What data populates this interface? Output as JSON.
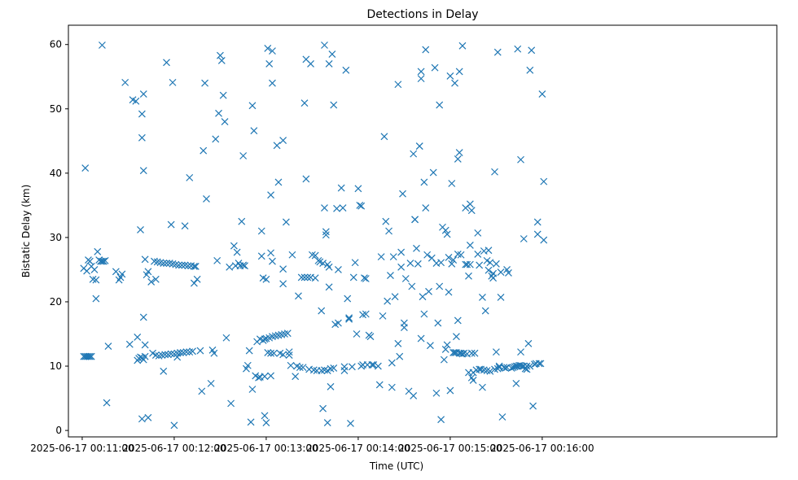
{
  "chart_data": {
    "type": "scatter",
    "title": "Detections in Delay",
    "xlabel": "Time (UTC)",
    "ylabel": "Bistatic Delay (km)",
    "marker": "x",
    "color": "#1f77b4",
    "x_unit": "seconds past 2025-06-17 00:11:00",
    "xlim": [
      -9,
      453
    ],
    "ylim": [
      -1,
      63
    ],
    "x_ticks": [
      {
        "value": 0,
        "label": "2025-06-17 00:11:00"
      },
      {
        "value": 60,
        "label": "2025-06-17 00:12:00"
      },
      {
        "value": 120,
        "label": "2025-06-17 00:13:00"
      },
      {
        "value": 180,
        "label": "2025-06-17 00:14:00"
      },
      {
        "value": 240,
        "label": "2025-06-17 00:15:00"
      },
      {
        "value": 300,
        "label": "2025-06-17 00:16:00"
      }
    ],
    "y_ticks": [
      0,
      10,
      20,
      30,
      40,
      50,
      60
    ],
    "points": [
      [
        1,
        11.5
      ],
      [
        2,
        11.5
      ],
      [
        3,
        11.5
      ],
      [
        4,
        11.5
      ],
      [
        5,
        11.5
      ],
      [
        6,
        11.5
      ],
      [
        1,
        25.2
      ],
      [
        3,
        24.8
      ],
      [
        4,
        26.5
      ],
      [
        5,
        26.3
      ],
      [
        6,
        25.5
      ],
      [
        7,
        23.5
      ],
      [
        8,
        25.0
      ],
      [
        9,
        23.4
      ],
      [
        10,
        27.8
      ],
      [
        11,
        26.5
      ],
      [
        12,
        26.3
      ],
      [
        13,
        26.3
      ],
      [
        14,
        26.3
      ],
      [
        15,
        26.4
      ],
      [
        2,
        40.8
      ],
      [
        9,
        20.5
      ],
      [
        13,
        59.9
      ],
      [
        16,
        4.3
      ],
      [
        17,
        13.1
      ],
      [
        22,
        24.7
      ],
      [
        24,
        23.4
      ],
      [
        25,
        23.8
      ],
      [
        26,
        24.3
      ],
      [
        28,
        54.1
      ],
      [
        31,
        13.4
      ],
      [
        33,
        51.4
      ],
      [
        35,
        51.2
      ],
      [
        36,
        14.5
      ],
      [
        36,
        10.9
      ],
      [
        37,
        11.2
      ],
      [
        38,
        11.4
      ],
      [
        39,
        11.3
      ],
      [
        40,
        11.0
      ],
      [
        41,
        11.5
      ],
      [
        38,
        31.2
      ],
      [
        39,
        1.8
      ],
      [
        39,
        49.2
      ],
      [
        39,
        45.5
      ],
      [
        40,
        17.6
      ],
      [
        40,
        52.3
      ],
      [
        40,
        40.4
      ],
      [
        41,
        26.6
      ],
      [
        41,
        13.3
      ],
      [
        42,
        24.2
      ],
      [
        43,
        2.0
      ],
      [
        43,
        24.7
      ],
      [
        46,
        12.0
      ],
      [
        47,
        26.3
      ],
      [
        48,
        11.7
      ],
      [
        49,
        26.2
      ],
      [
        50,
        11.6
      ],
      [
        51,
        26.1
      ],
      [
        52,
        11.7
      ],
      [
        53,
        26.0
      ],
      [
        54,
        11.8
      ],
      [
        55,
        26.0
      ],
      [
        56,
        11.8
      ],
      [
        57,
        26.0
      ],
      [
        58,
        11.9
      ],
      [
        59,
        25.9
      ],
      [
        60,
        11.9
      ],
      [
        61,
        25.8
      ],
      [
        62,
        12.0
      ],
      [
        63,
        25.7
      ],
      [
        64,
        12.1
      ],
      [
        65,
        25.7
      ],
      [
        66,
        12.1
      ],
      [
        67,
        25.7
      ],
      [
        68,
        12.2
      ],
      [
        69,
        25.6
      ],
      [
        70,
        12.2
      ],
      [
        71,
        25.6
      ],
      [
        72,
        12.3
      ],
      [
        73,
        25.5
      ],
      [
        74,
        25.5
      ],
      [
        45,
        23.1
      ],
      [
        48,
        23.5
      ],
      [
        53,
        9.2
      ],
      [
        55,
        57.2
      ],
      [
        58,
        32.0
      ],
      [
        59,
        54.1
      ],
      [
        60,
        0.8
      ],
      [
        62,
        11.4
      ],
      [
        67,
        31.8
      ],
      [
        70,
        39.3
      ],
      [
        73,
        22.9
      ],
      [
        75,
        23.5
      ],
      [
        77,
        12.4
      ],
      [
        78,
        6.1
      ],
      [
        79,
        43.5
      ],
      [
        80,
        54.0
      ],
      [
        81,
        36.0
      ],
      [
        84,
        7.3
      ],
      [
        85,
        12.5
      ],
      [
        86,
        12.0
      ],
      [
        87,
        45.3
      ],
      [
        88,
        26.4
      ],
      [
        89,
        49.3
      ],
      [
        90,
        58.3
      ],
      [
        91,
        57.5
      ],
      [
        92,
        52.1
      ],
      [
        93,
        48.0
      ],
      [
        94,
        14.4
      ],
      [
        96,
        25.4
      ],
      [
        97,
        4.2
      ],
      [
        99,
        28.7
      ],
      [
        100,
        25.6
      ],
      [
        101,
        27.7
      ],
      [
        102,
        26.0
      ],
      [
        103,
        25.6
      ],
      [
        104,
        32.5
      ],
      [
        105,
        25.7
      ],
      [
        105,
        42.7
      ],
      [
        106,
        25.6
      ],
      [
        107,
        9.6
      ],
      [
        108,
        10.1
      ],
      [
        109,
        12.4
      ],
      [
        110,
        1.3
      ],
      [
        111,
        6.4
      ],
      [
        111,
        50.5
      ],
      [
        112,
        46.6
      ],
      [
        113,
        8.5
      ],
      [
        114,
        13.8
      ],
      [
        115,
        8.2
      ],
      [
        116,
        8.3
      ],
      [
        116,
        14.2
      ],
      [
        117,
        27.1
      ],
      [
        117,
        31.0
      ],
      [
        118,
        23.7
      ],
      [
        118,
        14.0
      ],
      [
        119,
        14.2
      ],
      [
        120,
        23.5
      ],
      [
        120,
        14.3
      ],
      [
        121,
        59.4
      ],
      [
        121,
        12.1
      ],
      [
        122,
        57.0
      ],
      [
        122,
        14.4
      ],
      [
        123,
        36.6
      ],
      [
        123,
        27.6
      ],
      [
        123,
        12.0
      ],
      [
        124,
        14.6
      ],
      [
        124,
        26.3
      ],
      [
        124,
        54.0
      ],
      [
        124,
        59.0
      ],
      [
        125,
        12.0
      ],
      [
        126,
        14.7
      ],
      [
        127,
        44.3
      ],
      [
        128,
        38.6
      ],
      [
        128,
        14.8
      ],
      [
        129,
        12.0
      ],
      [
        130,
        14.9
      ],
      [
        131,
        45.1
      ],
      [
        131,
        22.8
      ],
      [
        131,
        25.1
      ],
      [
        131,
        11.8
      ],
      [
        132,
        15.0
      ],
      [
        133,
        32.4
      ],
      [
        134,
        15.1
      ],
      [
        135,
        11.7
      ],
      [
        135,
        12.2
      ],
      [
        136,
        10.1
      ],
      [
        137,
        27.3
      ],
      [
        119,
        2.3
      ],
      [
        119,
        8.4
      ],
      [
        120,
        1.2
      ],
      [
        123,
        8.5
      ],
      [
        139,
        8.4
      ],
      [
        140,
        10.0
      ],
      [
        141,
        20.9
      ],
      [
        142,
        9.8
      ],
      [
        143,
        23.8
      ],
      [
        144,
        9.8
      ],
      [
        145,
        50.9
      ],
      [
        145,
        23.8
      ],
      [
        146,
        57.7
      ],
      [
        146,
        39.1
      ],
      [
        147,
        23.8
      ],
      [
        148,
        9.5
      ],
      [
        149,
        57.0
      ],
      [
        149,
        23.8
      ],
      [
        150,
        27.3
      ],
      [
        151,
        9.4
      ],
      [
        152,
        27.2
      ],
      [
        152,
        23.7
      ],
      [
        153,
        9.3
      ],
      [
        154,
        26.4
      ],
      [
        155,
        26.2
      ],
      [
        156,
        9.3
      ],
      [
        156,
        18.6
      ],
      [
        157,
        26.0
      ],
      [
        157,
        3.4
      ],
      [
        158,
        9.4
      ],
      [
        158,
        59.9
      ],
      [
        158,
        34.6
      ],
      [
        159,
        30.4
      ],
      [
        159,
        30.9
      ],
      [
        160,
        9.3
      ],
      [
        160,
        25.8
      ],
      [
        160,
        1.2
      ],
      [
        161,
        22.3
      ],
      [
        161,
        25.4
      ],
      [
        161,
        57.0
      ],
      [
        162,
        6.8
      ],
      [
        162,
        9.6
      ],
      [
        163,
        58.5
      ],
      [
        164,
        9.7
      ],
      [
        164,
        50.6
      ],
      [
        165,
        16.5
      ],
      [
        166,
        34.5
      ],
      [
        167,
        16.7
      ],
      [
        167,
        25.0
      ],
      [
        169,
        37.7
      ],
      [
        170,
        34.6
      ],
      [
        171,
        9.3
      ],
      [
        171,
        9.9
      ],
      [
        172,
        56.0
      ],
      [
        173,
        20.5
      ],
      [
        174,
        17.5
      ],
      [
        174,
        17.3
      ],
      [
        175,
        1.1
      ],
      [
        176,
        9.9
      ],
      [
        177,
        23.8
      ],
      [
        178,
        26.1
      ],
      [
        179,
        15.0
      ],
      [
        180,
        37.6
      ],
      [
        181,
        35.0
      ],
      [
        182,
        10.0
      ],
      [
        182,
        34.9
      ],
      [
        183,
        10.2
      ],
      [
        183,
        18.0
      ],
      [
        184,
        23.7
      ],
      [
        185,
        23.6
      ],
      [
        185,
        18.1
      ],
      [
        186,
        10.2
      ],
      [
        187,
        14.8
      ],
      [
        188,
        14.6
      ],
      [
        189,
        10.2
      ],
      [
        190,
        10.2
      ],
      [
        193,
        10.0
      ],
      [
        194,
        7.1
      ],
      [
        195,
        27.0
      ],
      [
        196,
        17.8
      ],
      [
        197,
        45.7
      ],
      [
        198,
        32.5
      ],
      [
        199,
        20.1
      ],
      [
        200,
        31.0
      ],
      [
        201,
        24.1
      ],
      [
        202,
        10.5
      ],
      [
        202,
        6.7
      ],
      [
        203,
        27.0
      ],
      [
        204,
        20.8
      ],
      [
        206,
        53.8
      ],
      [
        206,
        13.5
      ],
      [
        207,
        11.5
      ],
      [
        208,
        25.4
      ],
      [
        208,
        27.7
      ],
      [
        209,
        36.8
      ],
      [
        210,
        16.0
      ],
      [
        210,
        16.7
      ],
      [
        211,
        23.6
      ],
      [
        213,
        6.1
      ],
      [
        214,
        26.0
      ],
      [
        215,
        22.4
      ],
      [
        216,
        5.4
      ],
      [
        216,
        43.0
      ],
      [
        217,
        32.8
      ],
      [
        217,
        32.8
      ],
      [
        218,
        28.3
      ],
      [
        219,
        25.9
      ],
      [
        220,
        44.2
      ],
      [
        220,
        44.2
      ],
      [
        221,
        14.3
      ],
      [
        221,
        55.8
      ],
      [
        221,
        54.7
      ],
      [
        222,
        20.8
      ],
      [
        223,
        38.6
      ],
      [
        223,
        18.1
      ],
      [
        224,
        34.6
      ],
      [
        224,
        59.2
      ],
      [
        225,
        27.3
      ],
      [
        226,
        21.6
      ],
      [
        227,
        13.2
      ],
      [
        228,
        26.8
      ],
      [
        229,
        40.1
      ],
      [
        230,
        56.4
      ],
      [
        231,
        5.8
      ],
      [
        231,
        26.0
      ],
      [
        232,
        16.7
      ],
      [
        233,
        22.4
      ],
      [
        233,
        50.6
      ],
      [
        234,
        26.1
      ],
      [
        234,
        1.7
      ],
      [
        235,
        31.6
      ],
      [
        236,
        11.0
      ],
      [
        237,
        31.1
      ],
      [
        237,
        12.6
      ],
      [
        238,
        13.3
      ],
      [
        238,
        30.5
      ],
      [
        239,
        21.5
      ],
      [
        239,
        26.9
      ],
      [
        240,
        6.2
      ],
      [
        240,
        55.1
      ],
      [
        241,
        38.4
      ],
      [
        241,
        25.9
      ],
      [
        242,
        12.1
      ],
      [
        242,
        26.5
      ],
      [
        243,
        12.1
      ],
      [
        243,
        54.0
      ],
      [
        244,
        14.6
      ],
      [
        244,
        12.1
      ],
      [
        245,
        27.4
      ],
      [
        245,
        17.1
      ],
      [
        245,
        42.2
      ],
      [
        246,
        43.2
      ],
      [
        246,
        55.8
      ],
      [
        246,
        12.0
      ],
      [
        247,
        27.3
      ],
      [
        247,
        12.0
      ],
      [
        248,
        59.8
      ],
      [
        248,
        11.9
      ],
      [
        249,
        12.0
      ],
      [
        250,
        34.6
      ],
      [
        250,
        25.8
      ],
      [
        251,
        11.9
      ],
      [
        251,
        25.8
      ],
      [
        252,
        9.0
      ],
      [
        252,
        24.0
      ],
      [
        253,
        35.2
      ],
      [
        253,
        25.8
      ],
      [
        253,
        28.8
      ],
      [
        254,
        34.2
      ],
      [
        254,
        12.0
      ],
      [
        254,
        8.2
      ],
      [
        255,
        7.8
      ],
      [
        255,
        9.0
      ],
      [
        256,
        12.0
      ],
      [
        257,
        9.4
      ],
      [
        258,
        30.7
      ],
      [
        258,
        27.4
      ],
      [
        259,
        9.5
      ],
      [
        259,
        25.7
      ],
      [
        260,
        9.5
      ],
      [
        261,
        6.7
      ],
      [
        261,
        20.7
      ],
      [
        262,
        9.4
      ],
      [
        262,
        27.9
      ],
      [
        263,
        18.6
      ],
      [
        264,
        9.3
      ],
      [
        264,
        26.4
      ],
      [
        265,
        28.0
      ],
      [
        265,
        24.9
      ],
      [
        266,
        9.2
      ],
      [
        266,
        26.1
      ],
      [
        267,
        24.0
      ],
      [
        268,
        23.7
      ],
      [
        268,
        24.4
      ],
      [
        269,
        9.5
      ],
      [
        269,
        40.2
      ],
      [
        270,
        25.9
      ],
      [
        270,
        12.2
      ],
      [
        271,
        9.6
      ],
      [
        271,
        58.8
      ],
      [
        272,
        9.8
      ],
      [
        272,
        10.0
      ],
      [
        273,
        24.6
      ],
      [
        273,
        20.7
      ],
      [
        274,
        2.1
      ],
      [
        275,
        9.8
      ],
      [
        276,
        9.7
      ],
      [
        277,
        9.8
      ],
      [
        277,
        25.0
      ],
      [
        278,
        24.5
      ],
      [
        280,
        9.7
      ],
      [
        281,
        9.8
      ],
      [
        282,
        9.9
      ],
      [
        283,
        10.0
      ],
      [
        283,
        7.3
      ],
      [
        284,
        59.3
      ],
      [
        284,
        10.0
      ],
      [
        285,
        10.1
      ],
      [
        286,
        10.1
      ],
      [
        286,
        42.1
      ],
      [
        286,
        12.2
      ],
      [
        287,
        10.0
      ],
      [
        288,
        29.8
      ],
      [
        288,
        10.0
      ],
      [
        289,
        9.6
      ],
      [
        290,
        9.5
      ],
      [
        290,
        10.0
      ],
      [
        291,
        13.5
      ],
      [
        292,
        10.0
      ],
      [
        292,
        56.0
      ],
      [
        293,
        59.1
      ],
      [
        294,
        3.8
      ],
      [
        295,
        10.3
      ],
      [
        296,
        10.4
      ],
      [
        297,
        32.4
      ],
      [
        297,
        30.5
      ],
      [
        298,
        10.4
      ],
      [
        299,
        10.4
      ],
      [
        300,
        52.3
      ],
      [
        301,
        29.6
      ],
      [
        301,
        38.7
      ]
    ]
  }
}
